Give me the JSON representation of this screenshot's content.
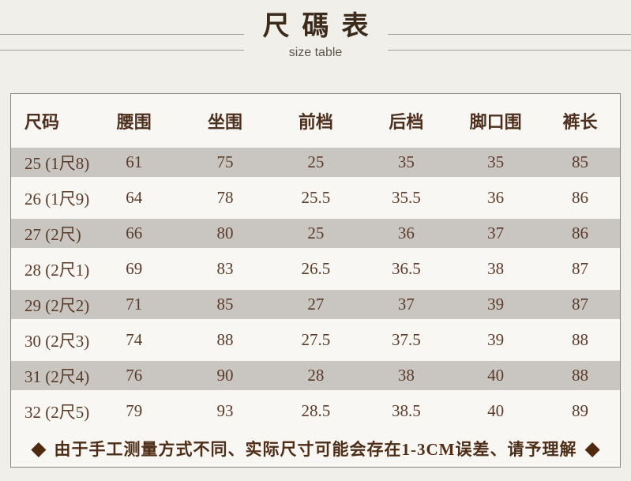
{
  "header": {
    "title": "尺碼表",
    "subtitle": "size table"
  },
  "table": {
    "columns": [
      "尺码",
      "腰围",
      "坐围",
      "前档",
      "后档",
      "脚口围",
      "裤长"
    ],
    "rows": [
      [
        "25 (1尺8)",
        "61",
        "75",
        "25",
        "35",
        "35",
        "85"
      ],
      [
        "26 (1尺9)",
        "64",
        "78",
        "25.5",
        "35.5",
        "36",
        "86"
      ],
      [
        "27 (2尺)",
        "66",
        "80",
        "25",
        "36",
        "37",
        "86"
      ],
      [
        "28 (2尺1)",
        "69",
        "83",
        "26.5",
        "36.5",
        "38",
        "87"
      ],
      [
        "29 (2尺2)",
        "71",
        "85",
        "27",
        "37",
        "39",
        "87"
      ],
      [
        "30 (2尺3)",
        "74",
        "88",
        "27.5",
        "37.5",
        "39",
        "88"
      ],
      [
        "31 (2尺4)",
        "76",
        "90",
        "28",
        "38",
        "40",
        "88"
      ],
      [
        "32 (2尺5)",
        "79",
        "93",
        "28.5",
        "38.5",
        "40",
        "89"
      ]
    ]
  },
  "note": {
    "icon": "◆",
    "text": "由于手工测量方式不同、实际尺寸可能会存在1-3CM误差、请予理解"
  },
  "colors": {
    "page_background": "#f1efe9",
    "table_background": "#f8f7f3",
    "stripe_row": "#c9c6c1",
    "text_brown": "#5a3a28",
    "accent_dark_brown": "#50290f",
    "rule_line": "#a59e94"
  }
}
